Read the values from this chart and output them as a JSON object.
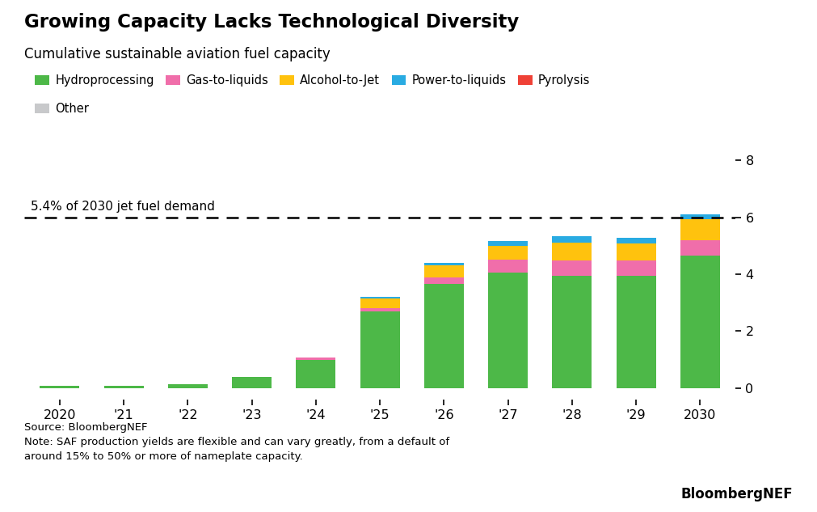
{
  "title": "Growing Capacity Lacks Technological Diversity",
  "subtitle": "Cumulative sustainable aviation fuel capacity",
  "years": [
    "2020",
    "'21",
    "'22",
    "'23",
    "'24",
    "'25",
    "'26",
    "'27",
    "'28",
    "'29",
    "2030"
  ],
  "series": {
    "Hydroprocessing": [
      0.08,
      0.08,
      0.14,
      0.4,
      1.0,
      2.7,
      3.65,
      4.05,
      3.95,
      3.95,
      4.65
    ],
    "Gas-to-liquids": [
      0.0,
      0.0,
      0.0,
      0.0,
      0.06,
      0.1,
      0.25,
      0.45,
      0.52,
      0.52,
      0.55
    ],
    "Alcohol-to-Jet": [
      0.0,
      0.0,
      0.0,
      0.0,
      0.0,
      0.35,
      0.42,
      0.5,
      0.65,
      0.62,
      0.72
    ],
    "Power-to-liquids": [
      0.0,
      0.0,
      0.0,
      0.0,
      0.0,
      0.05,
      0.08,
      0.18,
      0.22,
      0.18,
      0.18
    ],
    "Pyrolysis": [
      0.0,
      0.0,
      0.0,
      0.0,
      0.0,
      0.0,
      0.0,
      0.0,
      0.0,
      0.0,
      0.0
    ],
    "Other": [
      0.0,
      0.0,
      0.0,
      0.0,
      0.0,
      0.0,
      0.0,
      0.0,
      0.0,
      0.0,
      0.0
    ]
  },
  "colors": {
    "Hydroprocessing": "#4db848",
    "Gas-to-liquids": "#f06eaa",
    "Alcohol-to-Jet": "#ffc20e",
    "Power-to-liquids": "#29abe2",
    "Pyrolysis": "#ef4136",
    "Other": "#c8c9cb"
  },
  "dashed_line_y": 6.0,
  "dashed_line_label": "5.4% of 2030 jet fuel demand",
  "ylim": [
    -0.4,
    8.6
  ],
  "yticks": [
    0,
    2,
    4,
    6,
    8
  ],
  "source_text": "Source: BloombergNEF\nNote: SAF production yields are flexible and can vary greatly, from a default of\naround 15% to 50% or more of nameplate capacity.",
  "bloomberg_text": "BloombergNEF",
  "background_color": "#ffffff"
}
